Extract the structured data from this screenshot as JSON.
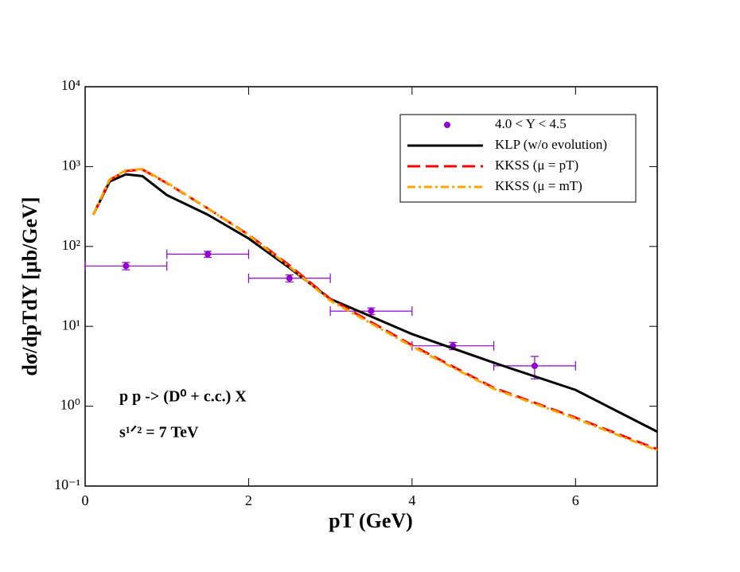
{
  "chart_data": {
    "type": "line",
    "xlabel": "pT (GeV)",
    "ylabel": "dσ/dpTdY [μb/GeV]",
    "annotations": [
      "p p -> (D⁰ + c.c.) X",
      "s¹ᐟ² = 7 TeV"
    ],
    "xlim": [
      0,
      7
    ],
    "xticks": [
      0,
      2,
      4,
      6
    ],
    "ylim": [
      0.1,
      10000
    ],
    "yscale": "log",
    "yticks": [
      {
        "value": 0.1,
        "label": "10⁻¹"
      },
      {
        "value": 1,
        "label": "10⁰"
      },
      {
        "value": 10,
        "label": "10¹"
      },
      {
        "value": 100,
        "label": "10²"
      },
      {
        "value": 1000,
        "label": "10³"
      },
      {
        "value": 10000,
        "label": "10⁴"
      }
    ],
    "legend": "upper right",
    "series": [
      {
        "name": "4.0 < Y < 4.5",
        "kind": "scatter",
        "color": "#9400d3",
        "x": [
          0.5,
          1.5,
          2.5,
          3.5,
          4.5,
          5.5
        ],
        "values": [
          57,
          80,
          40,
          15.5,
          5.7,
          3.2
        ],
        "xerr": [
          0.5,
          0.5,
          0.5,
          0.5,
          0.5,
          0.5
        ],
        "yerr": [
          6,
          7,
          4,
          1.5,
          0.6,
          1.0
        ]
      },
      {
        "name": "KLP (w/o evolution)",
        "kind": "line",
        "color": "#000000",
        "dash": "solid",
        "x": [
          0.1,
          0.3,
          0.5,
          0.7,
          1,
          1.5,
          2,
          2.5,
          3,
          4,
          5,
          6,
          7
        ],
        "values": [
          250,
          650,
          800,
          760,
          440,
          250,
          126,
          54,
          22,
          8,
          3.5,
          1.6,
          0.48
        ]
      },
      {
        "name": "KKSS (μ = pT)",
        "kind": "line",
        "color": "#ff0000",
        "dash": "long",
        "x": [
          0.1,
          0.3,
          0.5,
          0.7,
          1,
          1.5,
          2,
          2.5,
          3,
          4,
          5,
          6,
          7
        ],
        "values": [
          250,
          680,
          880,
          920,
          620,
          300,
          140,
          58,
          22,
          5.8,
          1.7,
          0.72,
          0.29
        ]
      },
      {
        "name": "KKSS (μ = mT)",
        "kind": "line",
        "color": "#ffa500",
        "dash": "dashdot",
        "x": [
          0.1,
          0.3,
          0.5,
          0.7,
          1,
          1.5,
          2,
          2.5,
          3,
          4,
          5,
          6,
          7
        ],
        "values": [
          250,
          690,
          900,
          930,
          630,
          300,
          138,
          56,
          21,
          5.6,
          1.65,
          0.7,
          0.28
        ]
      }
    ]
  }
}
